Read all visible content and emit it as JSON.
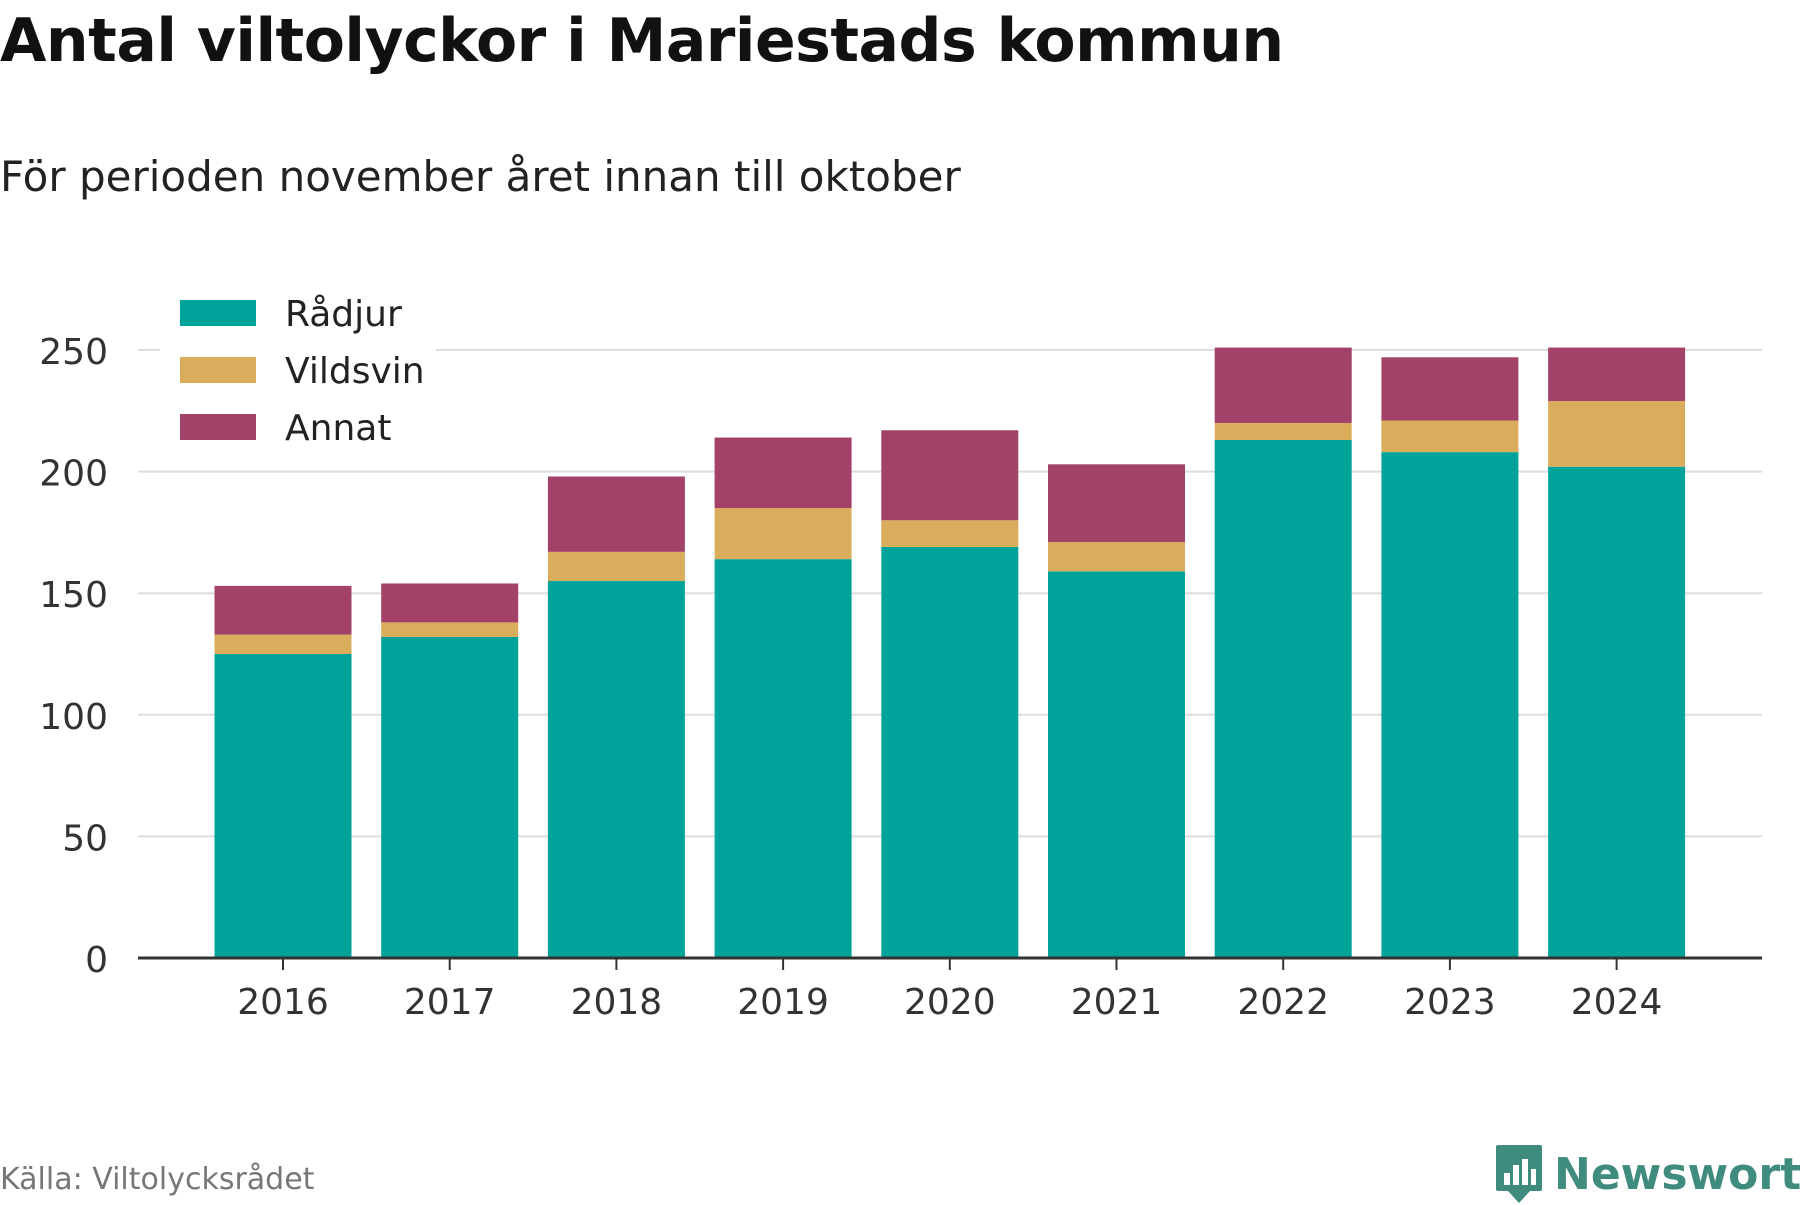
{
  "title": "Antal viltolyckor i Mariestads kommun",
  "subtitle": "För perioden november året innan till oktober",
  "source": "Källa: Viltolycksrådet",
  "brand": {
    "name": "Newsworthy",
    "icon": "newsworthy-logo-icon",
    "color": "#3f8c7e"
  },
  "chart_data": {
    "type": "bar",
    "stacked": true,
    "categories": [
      "2016",
      "2017",
      "2018",
      "2019",
      "2020",
      "2021",
      "2022",
      "2023",
      "2024"
    ],
    "series": [
      {
        "name": "Rådjur",
        "color": "#00a39a",
        "values": [
          125,
          132,
          155,
          164,
          169,
          159,
          213,
          208,
          202
        ]
      },
      {
        "name": "Vildsvin",
        "color": "#d9ad5b",
        "values": [
          8,
          6,
          12,
          21,
          11,
          12,
          7,
          13,
          27
        ]
      },
      {
        "name": "Annat",
        "color": "#a34268",
        "values": [
          20,
          16,
          31,
          29,
          37,
          32,
          31,
          26,
          22
        ]
      }
    ],
    "yticks": [
      0,
      50,
      100,
      150,
      200,
      250
    ],
    "ylim": [
      0,
      250
    ],
    "grid": true,
    "legend_position": "top-left"
  }
}
